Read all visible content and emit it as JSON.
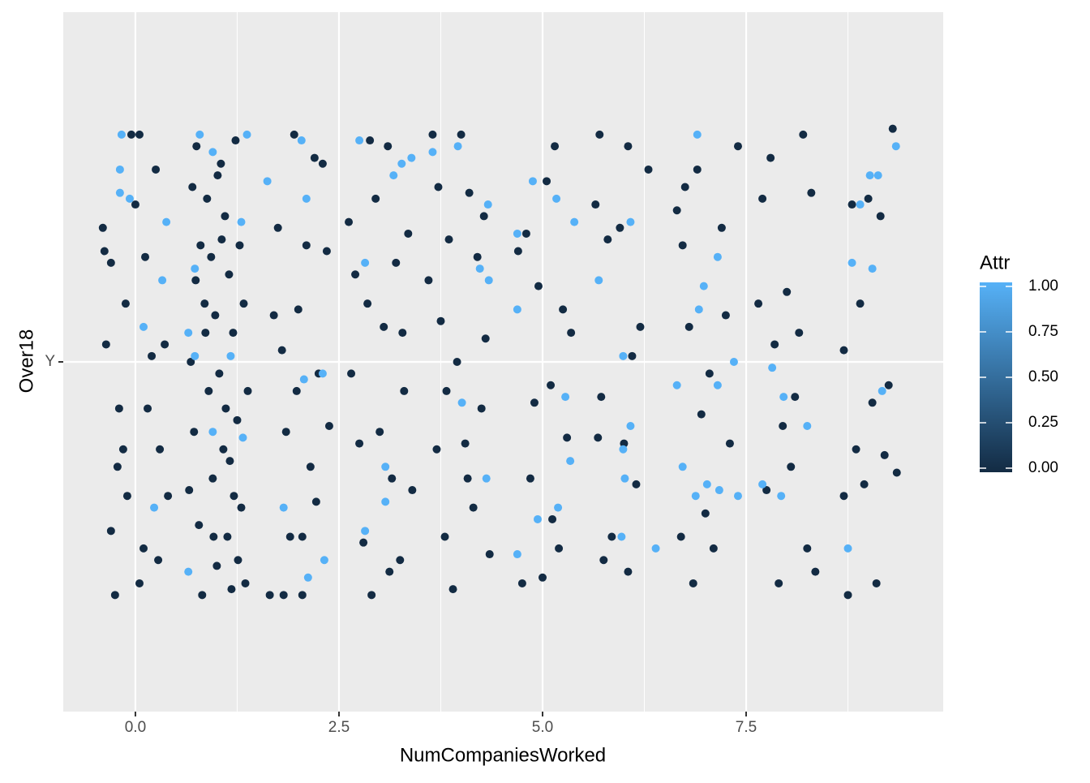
{
  "chart_data": {
    "type": "scatter",
    "x_label": "NumCompaniesWorked",
    "y_label": "Over18",
    "xlim": [
      -0.886,
      9.92
    ],
    "ylim": [
      0.4,
      1.6
    ],
    "xticks": [
      {
        "value": 0,
        "label": "0.0"
      },
      {
        "value": 2.5,
        "label": "2.5"
      },
      {
        "value": 5,
        "label": "5.0"
      },
      {
        "value": 7.5,
        "label": "7.5"
      }
    ],
    "xminor": [
      1.25,
      3.75,
      6.25,
      8.75
    ],
    "yticks": [
      {
        "value": 1,
        "label": "Y"
      }
    ],
    "grid": true,
    "legend": {
      "title": "Attr",
      "low": "#132B43",
      "high": "#56B1F7",
      "limits": [
        0,
        1
      ],
      "ticks": [
        {
          "value": 0,
          "label": "0.00"
        },
        {
          "value": 0.25,
          "label": "0.25"
        },
        {
          "value": 0.5,
          "label": "0.50"
        },
        {
          "value": 0.75,
          "label": "0.75"
        },
        {
          "value": 1,
          "label": "1.00"
        }
      ]
    },
    "series": [
      {
        "attr": 0,
        "x": [
          -0.4,
          -0.38,
          -0.36,
          -0.3,
          -0.25,
          -0.3,
          -0.22,
          -0.15,
          -0.05,
          0.05,
          0.1,
          0.2,
          0.15,
          -0.1,
          0.3,
          0.0,
          0.12,
          0.28,
          0.4,
          0.36,
          0.25,
          -0.2,
          0.05,
          -0.12,
          0.7,
          0.75,
          0.8,
          0.85,
          0.9,
          0.95,
          1.0,
          1.05,
          1.1,
          1.15,
          1.2,
          1.25,
          1.3,
          1.35,
          0.68,
          0.72,
          0.78,
          0.82,
          0.88,
          0.93,
          0.98,
          1.03,
          1.08,
          1.13,
          1.18,
          1.23,
          1.28,
          1.33,
          0.66,
          0.74,
          1.38,
          0.96,
          1.06,
          1.16,
          1.26,
          0.86,
          1.01,
          1.11,
          1.21,
          1.65,
          1.82,
          1.75,
          1.8,
          1.85,
          1.95,
          2.0,
          2.05,
          2.1,
          2.15,
          2.2,
          2.25,
          2.3,
          2.38,
          1.9,
          2.05,
          2.35,
          1.7,
          2.22,
          1.98,
          2.62,
          2.65,
          2.7,
          2.75,
          2.8,
          2.88,
          2.9,
          2.95,
          3.0,
          3.05,
          3.1,
          3.15,
          3.2,
          3.25,
          3.3,
          3.35,
          3.4,
          2.85,
          3.12,
          3.28,
          3.6,
          3.65,
          3.7,
          3.75,
          3.8,
          3.85,
          3.9,
          3.95,
          4.0,
          4.05,
          4.1,
          4.15,
          4.2,
          4.25,
          4.3,
          4.35,
          3.72,
          4.08,
          3.82,
          4.28,
          4.75,
          4.8,
          4.85,
          4.95,
          5.0,
          5.05,
          5.1,
          5.15,
          5.2,
          5.25,
          5.3,
          5.35,
          4.9,
          5.12,
          4.7,
          5.65,
          5.7,
          5.72,
          5.75,
          5.8,
          5.85,
          5.95,
          6.0,
          6.05,
          6.1,
          6.15,
          6.2,
          6.3,
          5.68,
          6.05,
          6.65,
          6.7,
          6.75,
          6.8,
          6.85,
          6.9,
          6.95,
          7.05,
          7.1,
          7.2,
          7.25,
          7.3,
          7.4,
          6.72,
          7.0,
          7.7,
          7.75,
          7.8,
          7.85,
          7.9,
          7.95,
          8.0,
          8.05,
          8.15,
          8.2,
          8.25,
          8.3,
          8.35,
          7.65,
          8.1,
          8.7,
          8.75,
          8.8,
          8.85,
          8.9,
          8.95,
          9.0,
          9.05,
          9.1,
          9.15,
          9.2,
          9.25,
          9.35,
          9.3,
          8.7
        ],
        "values": [
          1.23,
          1.19,
          1.03,
          1.17,
          0.6,
          0.71,
          0.82,
          0.85,
          1.39,
          1.39,
          0.68,
          1.01,
          0.92,
          0.77,
          0.85,
          1.27,
          1.18,
          0.66,
          0.77,
          1.03,
          1.33,
          0.92,
          0.62,
          1.1,
          1.3,
          1.37,
          1.2,
          1.1,
          0.95,
          0.8,
          0.65,
          1.34,
          1.25,
          1.15,
          1.05,
          0.9,
          0.75,
          0.62,
          1.0,
          0.88,
          0.72,
          0.6,
          1.28,
          1.18,
          1.08,
          0.98,
          0.85,
          0.7,
          0.61,
          1.38,
          1.2,
          1.1,
          0.78,
          1.14,
          0.95,
          0.7,
          1.21,
          0.83,
          0.66,
          1.05,
          1.32,
          0.92,
          0.77,
          0.6,
          0.6,
          1.23,
          1.02,
          0.88,
          1.39,
          1.09,
          0.7,
          1.2,
          0.82,
          1.35,
          0.98,
          1.34,
          0.89,
          0.7,
          0.6,
          1.19,
          1.08,
          0.76,
          0.95,
          1.24,
          0.98,
          1.15,
          0.86,
          0.69,
          1.38,
          0.6,
          1.28,
          0.88,
          1.06,
          1.37,
          0.8,
          1.17,
          0.66,
          0.95,
          1.22,
          0.78,
          1.1,
          0.64,
          1.05,
          1.14,
          1.39,
          0.85,
          1.07,
          0.7,
          1.21,
          0.61,
          1.0,
          1.39,
          0.86,
          1.29,
          0.75,
          1.18,
          0.92,
          1.04,
          0.67,
          1.3,
          0.8,
          0.95,
          1.25,
          0.62,
          1.22,
          0.8,
          1.13,
          0.63,
          1.31,
          0.96,
          1.37,
          0.68,
          1.09,
          0.87,
          1.05,
          0.93,
          0.73,
          1.19,
          1.27,
          1.39,
          0.94,
          0.66,
          1.21,
          0.7,
          1.23,
          0.86,
          1.37,
          1.01,
          0.79,
          1.06,
          1.33,
          0.87,
          0.64,
          1.26,
          0.7,
          1.3,
          1.06,
          0.62,
          1.33,
          0.91,
          0.98,
          0.68,
          1.23,
          1.08,
          0.86,
          1.37,
          1.2,
          0.74,
          1.28,
          0.78,
          1.35,
          1.03,
          0.62,
          0.89,
          1.12,
          0.82,
          1.05,
          1.39,
          0.68,
          1.29,
          0.64,
          1.1,
          0.94,
          1.02,
          0.6,
          1.27,
          0.85,
          1.1,
          0.79,
          1.28,
          0.93,
          0.62,
          1.25,
          0.84,
          0.96,
          0.81,
          1.4,
          0.77
        ]
      },
      {
        "attr": 1,
        "x": [
          -0.17,
          -0.19,
          -0.19,
          -0.07,
          0.1,
          0.23,
          0.38,
          0.33,
          0.79,
          0.95,
          0.73,
          0.65,
          0.95,
          0.65,
          1.37,
          1.62,
          2.1,
          2.04,
          2.07,
          2.3,
          1.82,
          2.12,
          2.32,
          2.75,
          2.82,
          3.07,
          3.07,
          2.82,
          3.17,
          3.27,
          3.39,
          3.65,
          3.96,
          4.01,
          4.33,
          4.23,
          4.34,
          4.31,
          4.69,
          4.69,
          4.88,
          5.17,
          5.39,
          5.69,
          5.28,
          5.34,
          4.94,
          5.19,
          4.69,
          6.08,
          5.99,
          6.08,
          5.99,
          6.01,
          5.97,
          6.39,
          6.9,
          6.98,
          6.92,
          7.15,
          7.35,
          7.15,
          6.65,
          6.72,
          7.02,
          6.88,
          7.17,
          7.4,
          7.7,
          7.82,
          7.96,
          7.93,
          8.25,
          8.8,
          9.05,
          8.9,
          9.02,
          9.12,
          9.34,
          9.17,
          8.75,
          1.3,
          1.32,
          1.17,
          0.73
        ],
        "values": [
          1.39,
          1.33,
          1.29,
          1.28,
          1.06,
          0.75,
          1.24,
          1.14,
          1.39,
          1.36,
          1.16,
          1.05,
          0.88,
          0.64,
          1.39,
          1.31,
          1.28,
          1.38,
          0.97,
          0.98,
          0.75,
          0.63,
          0.66,
          1.38,
          1.17,
          0.82,
          0.76,
          0.71,
          1.32,
          1.34,
          1.35,
          1.36,
          1.37,
          0.93,
          1.27,
          1.16,
          1.14,
          0.8,
          1.22,
          1.09,
          1.31,
          1.28,
          1.24,
          1.14,
          0.94,
          0.83,
          0.73,
          0.75,
          0.67,
          1.24,
          1.01,
          0.89,
          0.85,
          0.8,
          0.7,
          0.68,
          1.39,
          1.13,
          1.09,
          1.18,
          1.0,
          0.96,
          0.96,
          0.82,
          0.79,
          0.77,
          0.78,
          0.77,
          0.79,
          0.99,
          0.94,
          0.77,
          0.89,
          1.17,
          1.16,
          1.27,
          1.32,
          1.32,
          1.37,
          0.95,
          0.68,
          1.24,
          0.87,
          1.01,
          1.01
        ]
      }
    ]
  }
}
